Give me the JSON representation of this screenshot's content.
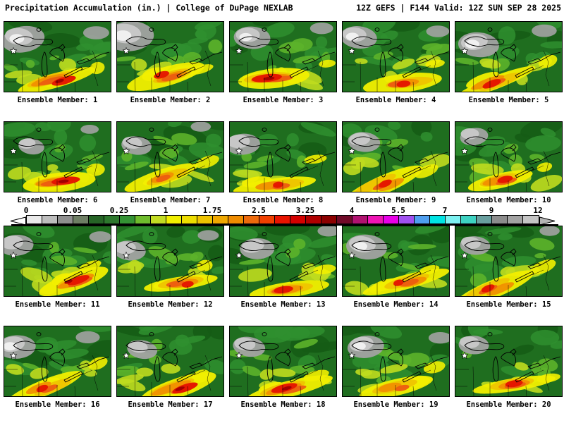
{
  "header": {
    "left": "Precipitation Accumulation (in.) | College of DuPage NEXLAB",
    "right": "12Z GEFS | F144 Valid: 12Z SUN SEP 28 2025"
  },
  "colorbar": {
    "units": "in.",
    "tick_labels": [
      "0",
      "0.05",
      "0.25",
      "1",
      "1.75",
      "2.5",
      "3.25",
      "4",
      "5.5",
      "7",
      "9",
      "12"
    ],
    "segment_colors": [
      "#e9e9e9",
      "#bdbdbd",
      "#8f8f8f",
      "#6e7e64",
      "#266426",
      "#2d782d",
      "#349234",
      "#6fbc2d",
      "#c3dc23",
      "#f1ef00",
      "#eedd00",
      "#eec300",
      "#f0a800",
      "#ef8c00",
      "#ed6a0c",
      "#f14000",
      "#e81400",
      "#d40000",
      "#b00000",
      "#8c0000",
      "#700a28",
      "#b01270",
      "#ee14b4",
      "#e800e8",
      "#a050f0",
      "#4f9ff0",
      "#00e4e4",
      "#7cf2f2",
      "#3ed2c2",
      "#699f9f",
      "#8c8c8c",
      "#a3a3a3",
      "#c5c5c5"
    ],
    "left_arrow_color": "#ffffff",
    "right_arrow_color": "#b4b4b4"
  },
  "map_palette": {
    "base": "#1f6e1f",
    "green_dark": "#155c15",
    "green_mid": "#2f8f2f",
    "green_light": "#5cb22a",
    "chartreuse": "#bfdc1e",
    "yellow": "#f2ef00",
    "gold": "#eec400",
    "orange": "#f09000",
    "orange_dark": "#ec5c10",
    "red": "#e41400",
    "dark_red": "#a00000",
    "gray": "#a2a2a2",
    "gray_light": "#c9c9c9",
    "white": "#f2f2f2"
  },
  "panels": [
    {
      "member": 1,
      "caption": "Ensemble Member: 1",
      "red": 0.85,
      "gray": 0.75
    },
    {
      "member": 2,
      "caption": "Ensemble Member: 2",
      "red": 0.6,
      "gray": 0.9
    },
    {
      "member": 3,
      "caption": "Ensemble Member: 3",
      "red": 1.0,
      "gray": 0.6
    },
    {
      "member": 4,
      "caption": "Ensemble Member: 4",
      "red": 0.55,
      "gray": 0.6
    },
    {
      "member": 5,
      "caption": "Ensemble Member: 5",
      "red": 0.7,
      "gray": 0.7
    },
    {
      "member": 6,
      "caption": "Ensemble Member: 6",
      "red": 0.95,
      "gray": 0.35
    },
    {
      "member": 7,
      "caption": "Ensemble Member: 7",
      "red": 0.3,
      "gray": 0.45
    },
    {
      "member": 8,
      "caption": "Ensemble Member: 8",
      "red": 0.45,
      "gray": 0.55
    },
    {
      "member": 9,
      "caption": "Ensemble Member: 9",
      "red": 0.55,
      "gray": 0.5
    },
    {
      "member": 10,
      "caption": "Ensemble Member: 10",
      "red": 0.6,
      "gray": 0.4
    },
    {
      "member": 11,
      "caption": "Ensemble Member: 11",
      "red": 0.8,
      "gray": 0.55
    },
    {
      "member": 12,
      "caption": "Ensemble Member: 12",
      "red": 0.5,
      "gray": 0.5
    },
    {
      "member": 13,
      "caption": "Ensemble Member: 13",
      "red": 0.7,
      "gray": 0.55
    },
    {
      "member": 14,
      "caption": "Ensemble Member: 14",
      "red": 0.45,
      "gray": 0.7
    },
    {
      "member": 15,
      "caption": "Ensemble Member: 15",
      "red": 0.55,
      "gray": 0.45
    },
    {
      "member": 16,
      "caption": "Ensemble Member: 16",
      "red": 0.5,
      "gray": 0.65
    },
    {
      "member": 17,
      "caption": "Ensemble Member: 17",
      "red": 0.9,
      "gray": 0.45
    },
    {
      "member": 18,
      "caption": "Ensemble Member: 18",
      "red": 0.9,
      "gray": 0.5
    },
    {
      "member": 19,
      "caption": "Ensemble Member: 19",
      "red": 0.35,
      "gray": 0.6
    },
    {
      "member": 20,
      "caption": "Ensemble Member: 20",
      "red": 0.65,
      "gray": 0.45
    }
  ]
}
